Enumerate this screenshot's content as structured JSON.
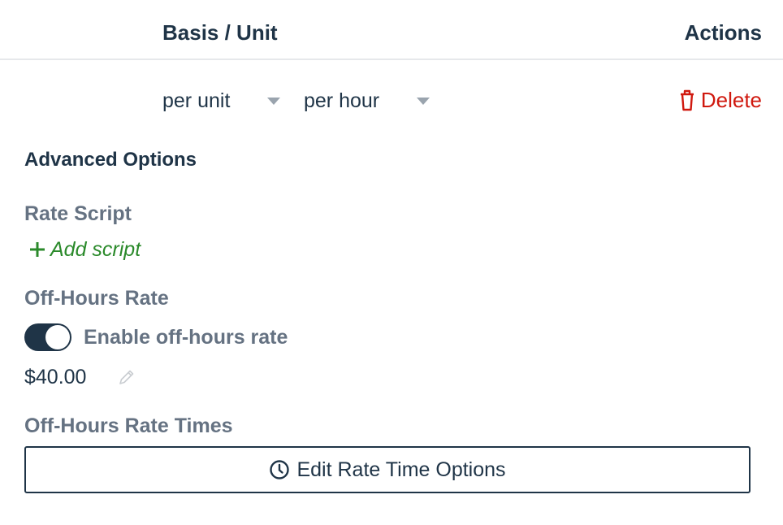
{
  "table": {
    "headers": {
      "basis_unit": "Basis / Unit",
      "actions": "Actions"
    },
    "row": {
      "basis": "per unit",
      "unit": "per hour",
      "delete_label": "Delete",
      "delete_color": "#d0190f"
    }
  },
  "advanced": {
    "title": "Advanced Options",
    "rate_script": {
      "label": "Rate Script",
      "add_label": "Add script",
      "add_color": "#2b8a2b"
    },
    "off_hours": {
      "label": "Off-Hours Rate",
      "toggle_label": "Enable off-hours rate",
      "toggle_on": true,
      "value": "$40.00"
    },
    "off_hours_times": {
      "label": "Off-Hours Rate Times",
      "button_label": "Edit Rate Time Options"
    }
  },
  "icons": {
    "delete": "trash-icon",
    "add": "plus-icon",
    "edit": "pencil-icon",
    "time": "clock-icon",
    "dropdown": "caret-down-icon"
  }
}
